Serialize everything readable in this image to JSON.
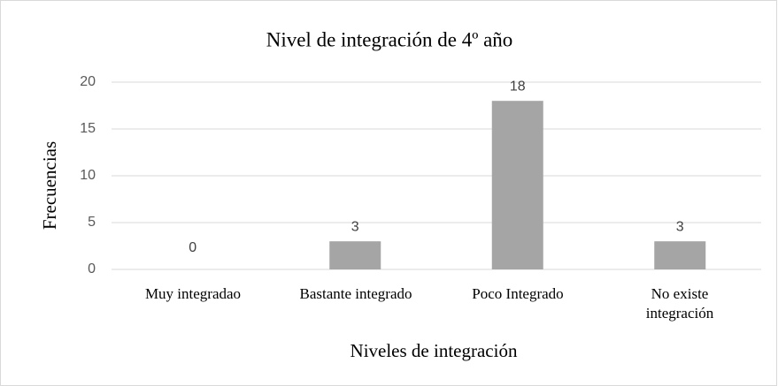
{
  "chart_data": {
    "type": "bar",
    "title": "Nivel de integración de 4º año",
    "x_label": "Niveles de integración",
    "y_label": "Frecuencias",
    "categories": [
      "Muy integradao",
      "Bastante integrado",
      "Poco Integrado",
      "No existe integración"
    ],
    "values": [
      0,
      3,
      18,
      3
    ],
    "color": "#a5a5a5",
    "ylim": [
      0,
      20
    ],
    "yticks": [
      0,
      5,
      10,
      15,
      20
    ],
    "grid": true
  }
}
